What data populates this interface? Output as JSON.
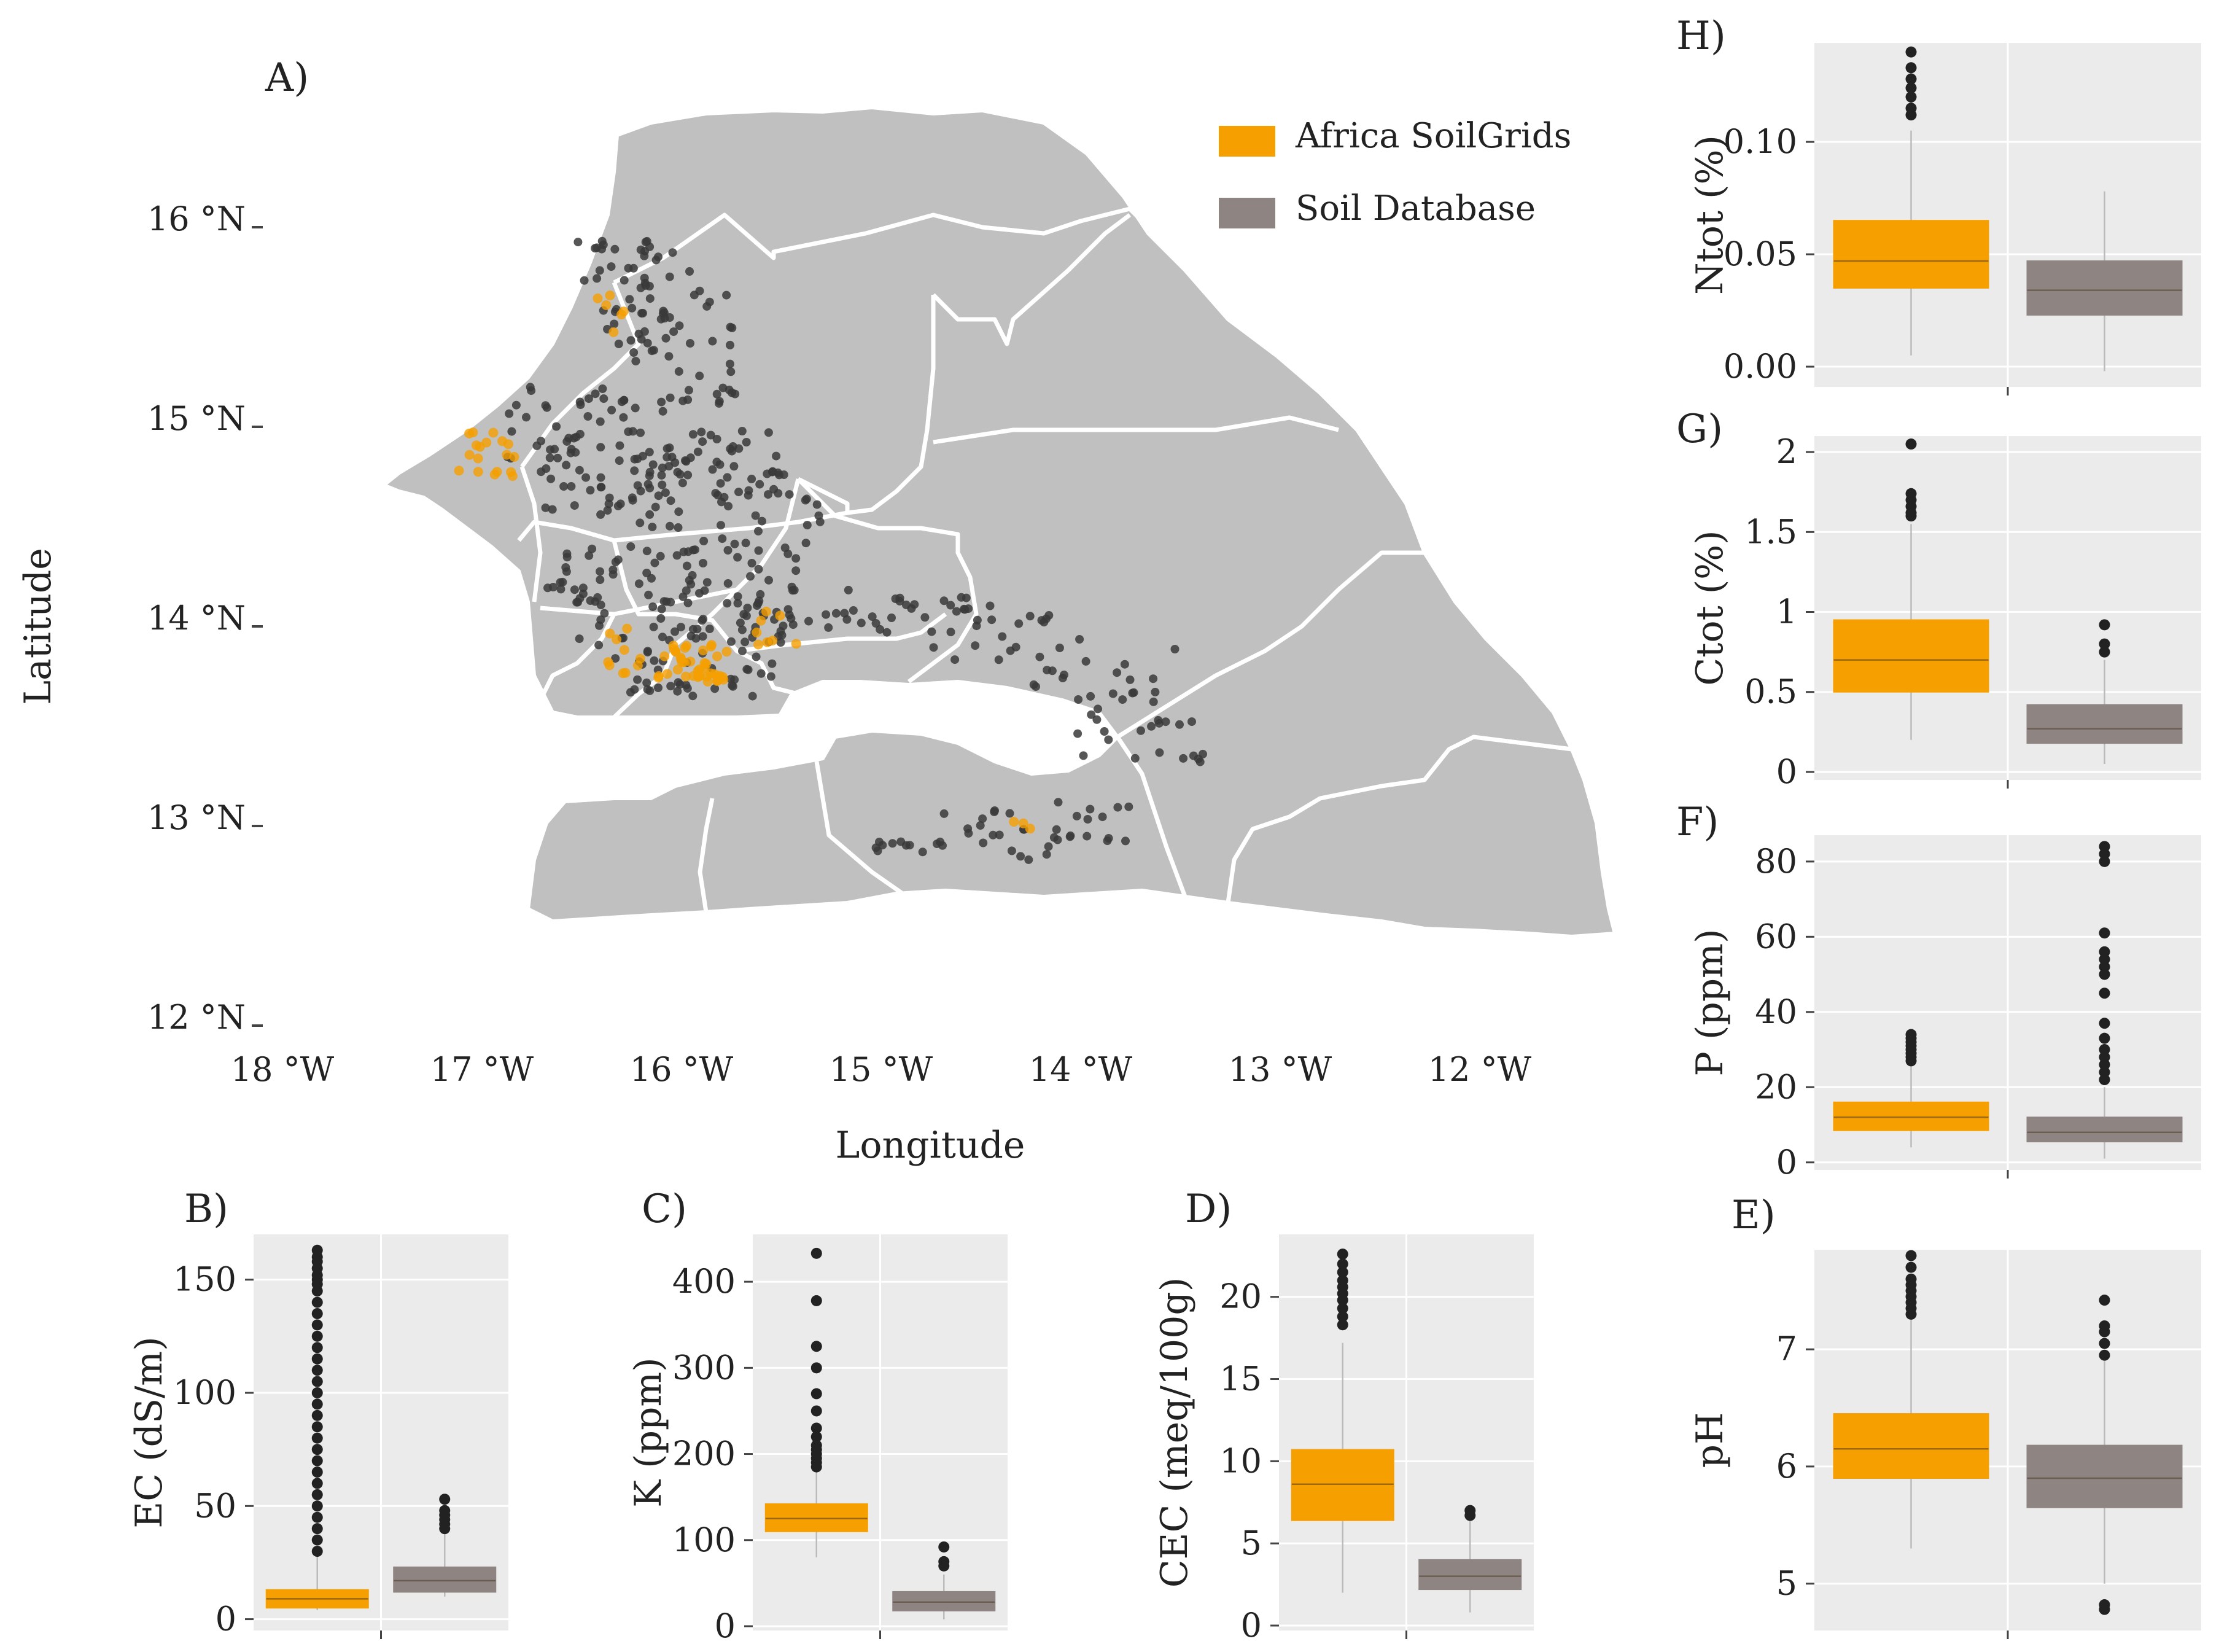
{
  "colors": {
    "soilgrids": "#F59F00",
    "database": "#8E8583",
    "panel_bg": "#EBEBEB",
    "grid": "#FFFFFF",
    "map_fill": "#C0C0C0",
    "map_border": "#FFFFFF",
    "points_dark": "#3A3A3A"
  },
  "map": {
    "panel_label": "A)",
    "xlabel": "Longitude",
    "ylabel": "Latitude",
    "lat_ticks": [
      "12 °N",
      "13 °N",
      "14 °N",
      "15 °N",
      "16 °N"
    ],
    "lon_ticks": [
      "18 °W",
      "17 °W",
      "16 °W",
      "15 °W",
      "14 °W",
      "13 °W",
      "12 °W"
    ],
    "legend": [
      {
        "label": "Africa SoilGrids",
        "color": "#F59F00"
      },
      {
        "label": "Soil Database",
        "color": "#8E8583"
      }
    ]
  },
  "chart_data": [
    {
      "type": "boxplot",
      "panel": "B)",
      "ylabel": "EC (dS/m)",
      "ylim": [
        -5,
        170
      ],
      "yticks": [
        0,
        50,
        100,
        150
      ],
      "series": [
        {
          "name": "Africa SoilGrids",
          "min": 4,
          "q1": 5,
          "median": 9,
          "q3": 13,
          "max": 28,
          "outliers": [
            30,
            35,
            40,
            45,
            50,
            55,
            60,
            65,
            70,
            75,
            80,
            85,
            90,
            95,
            100,
            105,
            110,
            115,
            120,
            125,
            130,
            135,
            140,
            145,
            148,
            150,
            152,
            155,
            158,
            160,
            163
          ]
        },
        {
          "name": "Soil Database",
          "min": 10,
          "q1": 12,
          "median": 17,
          "q3": 23,
          "max": 38,
          "outliers": [
            40,
            42,
            44,
            46,
            48,
            53
          ]
        }
      ]
    },
    {
      "type": "boxplot",
      "panel": "C)",
      "ylabel": "K (ppm)",
      "ylim": [
        -5,
        455
      ],
      "yticks": [
        0,
        100,
        200,
        300,
        400
      ],
      "series": [
        {
          "name": "Africa SoilGrids",
          "min": 80,
          "q1": 110,
          "median": 125,
          "q3": 142,
          "max": 180,
          "outliers": [
            185,
            190,
            195,
            200,
            205,
            210,
            220,
            230,
            250,
            270,
            300,
            325,
            378,
            433
          ]
        },
        {
          "name": "Soil Database",
          "min": 8,
          "q1": 18,
          "median": 28,
          "q3": 40,
          "max": 60,
          "outliers": [
            70,
            75,
            92
          ]
        }
      ]
    },
    {
      "type": "boxplot",
      "panel": "D)",
      "ylabel": "CEC (meq/100g)",
      "ylim": [
        -0.3,
        23.8
      ],
      "yticks": [
        0,
        5,
        10,
        15,
        20
      ],
      "series": [
        {
          "name": "Africa SoilGrids",
          "min": 2,
          "q1": 6.4,
          "median": 8.6,
          "q3": 10.7,
          "max": 17.2,
          "outliers": [
            18.3,
            18.8,
            19.3,
            19.8,
            20.2,
            20.6,
            21.0,
            21.5,
            22.0,
            22.6
          ]
        },
        {
          "name": "Soil Database",
          "min": 0.8,
          "q1": 2.2,
          "median": 3.0,
          "q3": 4.0,
          "max": 6.4,
          "outliers": [
            6.7,
            7.0
          ]
        }
      ]
    },
    {
      "type": "boxplot",
      "panel": "E)",
      "ylabel": "pH",
      "ylim": [
        4.6,
        7.85
      ],
      "yticks": [
        5,
        6,
        7
      ],
      "series": [
        {
          "name": "Africa SoilGrids",
          "min": 5.3,
          "q1": 5.9,
          "median": 6.15,
          "q3": 6.45,
          "max": 7.3,
          "outliers": [
            7.3,
            7.35,
            7.4,
            7.45,
            7.5,
            7.55,
            7.6,
            7.7,
            7.8
          ]
        },
        {
          "name": "Soil Database",
          "min": 5.0,
          "q1": 5.65,
          "median": 5.9,
          "q3": 6.18,
          "max": 6.9,
          "outliers": [
            6.95,
            7.05,
            7.15,
            7.2,
            7.42,
            4.82,
            4.78
          ]
        }
      ]
    },
    {
      "type": "boxplot",
      "panel": "F)",
      "ylabel": "P (ppm)",
      "ylim": [
        -2,
        87
      ],
      "yticks": [
        0,
        20,
        40,
        60,
        80
      ],
      "series": [
        {
          "name": "Africa SoilGrids",
          "min": 4,
          "q1": 8.5,
          "median": 12,
          "q3": 16,
          "max": 26,
          "outliers": [
            27,
            28,
            29,
            30,
            31,
            32,
            33,
            34
          ]
        },
        {
          "name": "Soil Database",
          "min": 1,
          "q1": 5.5,
          "median": 8,
          "q3": 12,
          "max": 20,
          "outliers": [
            22,
            24,
            26,
            28,
            30,
            33,
            37,
            45,
            50,
            52,
            54,
            56,
            61,
            80,
            82,
            84
          ]
        }
      ]
    },
    {
      "type": "boxplot",
      "panel": "G)",
      "ylabel": "Ctot (%)",
      "ylim": [
        -0.05,
        2.1
      ],
      "yticks": [
        0.0,
        0.5,
        1.0,
        1.5,
        2.0
      ],
      "series": [
        {
          "name": "Africa SoilGrids",
          "min": 0.2,
          "q1": 0.5,
          "median": 0.7,
          "q3": 0.95,
          "max": 1.55,
          "outliers": [
            1.6,
            1.62,
            1.66,
            1.7,
            1.74,
            2.05
          ]
        },
        {
          "name": "Soil Database",
          "min": 0.05,
          "q1": 0.18,
          "median": 0.27,
          "q3": 0.42,
          "max": 0.7,
          "outliers": [
            0.75,
            0.8,
            0.92
          ]
        }
      ]
    },
    {
      "type": "boxplot",
      "panel": "H)",
      "ylabel": "Ntot (%)",
      "ylim": [
        -0.009,
        0.144
      ],
      "yticks": [
        0.0,
        0.05,
        0.1
      ],
      "ytick_labels": [
        "0.00",
        "0.05",
        "0.10"
      ],
      "series": [
        {
          "name": "Africa SoilGrids",
          "min": 0.005,
          "q1": 0.035,
          "median": 0.047,
          "q3": 0.065,
          "max": 0.105,
          "outliers": [
            0.112,
            0.115,
            0.12,
            0.124,
            0.128,
            0.133,
            0.14
          ]
        },
        {
          "name": "Soil Database",
          "min": -0.002,
          "q1": 0.023,
          "median": 0.034,
          "q3": 0.047,
          "max": 0.078,
          "outliers": []
        }
      ]
    }
  ]
}
